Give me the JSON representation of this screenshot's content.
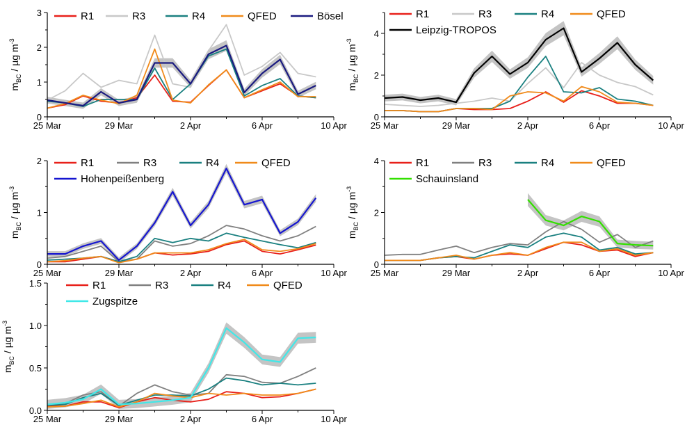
{
  "figure": {
    "x_tick_labels": [
      "25 Mar",
      "29 Mar",
      "2 Apr",
      "6 Apr",
      "10 Apr"
    ],
    "y_axis_label_main": "m",
    "y_axis_label_sub": "BC",
    "y_axis_label_unit": " / µg m",
    "y_axis_label_exp": "-3"
  },
  "colors": {
    "R1": "#e8201a",
    "R3_light": "#c8c8c8",
    "R3_dark": "#808080",
    "R4": "#1a8080",
    "QFED": "#f08a1a",
    "band": "#c4c4c4"
  },
  "chart_data": [
    {
      "type": "line",
      "panel": "a",
      "xlabel": "",
      "ylabel": "m_BC / µg m^-3",
      "xlim": [
        0,
        16
      ],
      "ylim": [
        0,
        3
      ],
      "yticks": [
        0,
        1,
        2,
        3
      ],
      "x": [
        0,
        1,
        2,
        3,
        4,
        5,
        6,
        7,
        8,
        9,
        10,
        11,
        12,
        13,
        14,
        15
      ],
      "series": [
        {
          "name": "R1",
          "color": "#e8201a",
          "values": [
            0.25,
            0.35,
            0.6,
            0.45,
            0.4,
            0.55,
            1.2,
            0.45,
            0.42,
            0.9,
            1.35,
            0.55,
            0.75,
            0.95,
            0.6,
            0.55
          ]
        },
        {
          "name": "R3",
          "color": "#c8c8c8",
          "values": [
            0.48,
            0.75,
            1.25,
            0.85,
            1.05,
            0.95,
            2.35,
            0.95,
            0.85,
            1.9,
            2.65,
            1.2,
            1.45,
            1.85,
            1.25,
            1.15
          ]
        },
        {
          "name": "R4",
          "color": "#1a8080",
          "values": [
            0.45,
            0.4,
            0.3,
            0.5,
            0.5,
            0.5,
            1.4,
            0.5,
            0.95,
            1.75,
            1.95,
            0.6,
            0.9,
            1.1,
            0.6,
            0.55
          ]
        },
        {
          "name": "QFED",
          "color": "#f08a1a",
          "values": [
            0.25,
            0.38,
            0.62,
            0.48,
            0.38,
            0.62,
            1.95,
            0.48,
            0.4,
            0.92,
            1.35,
            0.55,
            0.78,
            1.0,
            0.58,
            0.58
          ]
        },
        {
          "name": "Bösel",
          "color": "#1a1a80",
          "values": [
            0.48,
            0.4,
            0.32,
            0.72,
            0.4,
            0.5,
            1.55,
            1.55,
            0.95,
            1.8,
            2.05,
            0.7,
            1.25,
            1.65,
            0.65,
            0.9
          ],
          "band": 0.15
        }
      ]
    },
    {
      "type": "line",
      "panel": "b",
      "xlabel": "",
      "ylabel": "m_BC / µg m^-3",
      "xlim": [
        0,
        16
      ],
      "ylim": [
        0,
        5
      ],
      "yticks": [
        0,
        2,
        4
      ],
      "x": [
        0,
        1,
        2,
        3,
        4,
        5,
        6,
        7,
        8,
        9,
        10,
        11,
        12,
        13,
        14,
        15
      ],
      "series": [
        {
          "name": "R1",
          "color": "#e8201a",
          "values": [
            0.3,
            0.3,
            0.25,
            0.25,
            0.4,
            0.35,
            0.35,
            0.4,
            0.75,
            1.2,
            0.7,
            1.25,
            1.0,
            0.65,
            0.65,
            0.55
          ]
        },
        {
          "name": "R3",
          "color": "#c8c8c8",
          "values": [
            0.6,
            0.55,
            0.5,
            0.55,
            0.65,
            0.75,
            0.9,
            0.75,
            1.6,
            2.35,
            1.4,
            2.6,
            2.0,
            1.65,
            1.45,
            1.05
          ]
        },
        {
          "name": "R4",
          "color": "#1a8080",
          "values": [
            0.3,
            0.3,
            0.25,
            0.25,
            0.4,
            0.4,
            0.4,
            0.75,
            1.9,
            2.9,
            1.2,
            1.15,
            1.4,
            0.85,
            0.75,
            0.55
          ]
        },
        {
          "name": "QFED",
          "color": "#f08a1a",
          "values": [
            0.3,
            0.3,
            0.25,
            0.25,
            0.4,
            0.4,
            0.35,
            1.0,
            1.2,
            1.15,
            0.75,
            1.45,
            1.2,
            0.7,
            0.65,
            0.55
          ]
        },
        {
          "name": "Leipzig-TROPOS",
          "color": "#000000",
          "values": [
            0.9,
            0.95,
            0.8,
            0.9,
            0.7,
            2.1,
            2.9,
            2.05,
            2.6,
            3.7,
            4.25,
            2.15,
            2.8,
            3.55,
            2.5,
            1.75
          ],
          "band": 0.22
        }
      ]
    },
    {
      "type": "line",
      "panel": "c",
      "xlabel": "",
      "ylabel": "m_BC / µg m^-3",
      "xlim": [
        0,
        16
      ],
      "ylim": [
        0,
        2
      ],
      "yticks": [
        0,
        1,
        2
      ],
      "x": [
        0,
        1,
        2,
        3,
        4,
        5,
        6,
        7,
        8,
        9,
        10,
        11,
        12,
        13,
        14,
        15
      ],
      "series": [
        {
          "name": "R1",
          "color": "#e8201a",
          "values": [
            0.05,
            0.05,
            0.1,
            0.15,
            0.05,
            0.1,
            0.22,
            0.18,
            0.2,
            0.25,
            0.38,
            0.45,
            0.25,
            0.2,
            0.28,
            0.37
          ]
        },
        {
          "name": "R3",
          "color": "#808080",
          "values": [
            0.12,
            0.15,
            0.25,
            0.35,
            0.05,
            0.1,
            0.45,
            0.35,
            0.4,
            0.55,
            0.75,
            0.68,
            0.55,
            0.45,
            0.55,
            0.73
          ]
        },
        {
          "name": "R4",
          "color": "#1a8080",
          "values": [
            0.08,
            0.1,
            0.12,
            0.15,
            0.05,
            0.15,
            0.5,
            0.42,
            0.5,
            0.45,
            0.6,
            0.52,
            0.45,
            0.38,
            0.32,
            0.42
          ]
        },
        {
          "name": "QFED",
          "color": "#f08a1a",
          "values": [
            0.05,
            0.07,
            0.12,
            0.15,
            0.03,
            0.1,
            0.22,
            0.22,
            0.22,
            0.28,
            0.4,
            0.48,
            0.28,
            0.25,
            0.3,
            0.4
          ]
        },
        {
          "name": "Hohenpeißenberg",
          "color": "#1515d0",
          "values": [
            0.2,
            0.2,
            0.35,
            0.45,
            0.08,
            0.35,
            0.8,
            1.4,
            0.75,
            1.15,
            1.85,
            1.15,
            1.25,
            0.6,
            0.82,
            1.28
          ],
          "band": 0.09
        }
      ]
    },
    {
      "type": "line",
      "panel": "d",
      "xlabel": "",
      "ylabel": "m_BC / µg m^-3",
      "xlim": [
        0,
        16
      ],
      "ylim": [
        0,
        4
      ],
      "yticks": [
        0,
        2,
        4
      ],
      "x": [
        0,
        1,
        2,
        3,
        4,
        5,
        6,
        7,
        8,
        9,
        10,
        11,
        12,
        13,
        14,
        15
      ],
      "series": [
        {
          "name": "R1",
          "color": "#e8201a",
          "values": [
            0.15,
            0.15,
            0.15,
            0.25,
            0.3,
            0.2,
            0.35,
            0.4,
            0.35,
            0.6,
            0.85,
            0.75,
            0.5,
            0.55,
            0.3,
            0.45
          ]
        },
        {
          "name": "R3",
          "color": "#808080",
          "values": [
            0.35,
            0.38,
            0.38,
            0.55,
            0.7,
            0.45,
            0.65,
            0.8,
            0.75,
            1.25,
            1.65,
            1.35,
            0.85,
            1.15,
            0.65,
            0.9
          ]
        },
        {
          "name": "R4",
          "color": "#1a8080",
          "values": [
            0.15,
            0.15,
            0.15,
            0.25,
            0.3,
            0.25,
            0.5,
            0.75,
            0.65,
            1.05,
            1.2,
            1.05,
            0.55,
            0.65,
            0.4,
            0.45
          ]
        },
        {
          "name": "QFED",
          "color": "#f08a1a",
          "values": [
            0.15,
            0.15,
            0.15,
            0.25,
            0.35,
            0.2,
            0.35,
            0.45,
            0.35,
            0.65,
            0.85,
            0.85,
            0.5,
            0.6,
            0.35,
            0.45
          ]
        },
        {
          "name": "Schauinsland",
          "color": "#33e000",
          "x": [
            8,
            9,
            10,
            11,
            12,
            13,
            14,
            15
          ],
          "values": [
            2.5,
            1.7,
            1.5,
            1.85,
            1.65,
            0.8,
            0.75,
            0.72
          ],
          "band": 0.22
        }
      ]
    },
    {
      "type": "line",
      "panel": "e",
      "xlabel": "",
      "ylabel": "m_BC / µg m^-3",
      "xlim": [
        0,
        16
      ],
      "ylim": [
        0,
        1.5
      ],
      "yticks": [
        0.0,
        0.5,
        1.0,
        1.5
      ],
      "x": [
        0,
        1,
        2,
        3,
        4,
        5,
        6,
        7,
        8,
        9,
        10,
        11,
        12,
        13,
        14,
        15
      ],
      "series": [
        {
          "name": "R1",
          "color": "#e8201a",
          "values": [
            0.05,
            0.05,
            0.1,
            0.1,
            0.03,
            0.1,
            0.15,
            0.12,
            0.1,
            0.13,
            0.22,
            0.2,
            0.15,
            0.16,
            0.2,
            0.25
          ]
        },
        {
          "name": "R3",
          "color": "#808080",
          "values": [
            0.07,
            0.08,
            0.18,
            0.22,
            0.05,
            0.2,
            0.3,
            0.22,
            0.18,
            0.2,
            0.42,
            0.4,
            0.33,
            0.32,
            0.4,
            0.5
          ]
        },
        {
          "name": "R4",
          "color": "#1a8080",
          "values": [
            0.06,
            0.07,
            0.15,
            0.2,
            0.06,
            0.12,
            0.18,
            0.18,
            0.17,
            0.25,
            0.38,
            0.35,
            0.3,
            0.32,
            0.3,
            0.32
          ]
        },
        {
          "name": "QFED",
          "color": "#f08a1a",
          "values": [
            0.04,
            0.05,
            0.08,
            0.12,
            0.04,
            0.1,
            0.2,
            0.17,
            0.15,
            0.2,
            0.18,
            0.2,
            0.18,
            0.18,
            0.2,
            0.25
          ]
        },
        {
          "name": "Zugspitze",
          "color": "#40e8e8",
          "values": [
            0.07,
            0.09,
            0.13,
            0.25,
            0.07,
            0.08,
            0.1,
            0.12,
            0.15,
            0.5,
            0.97,
            0.8,
            0.6,
            0.57,
            0.85,
            0.86
          ],
          "band": 0.09
        }
      ]
    }
  ]
}
